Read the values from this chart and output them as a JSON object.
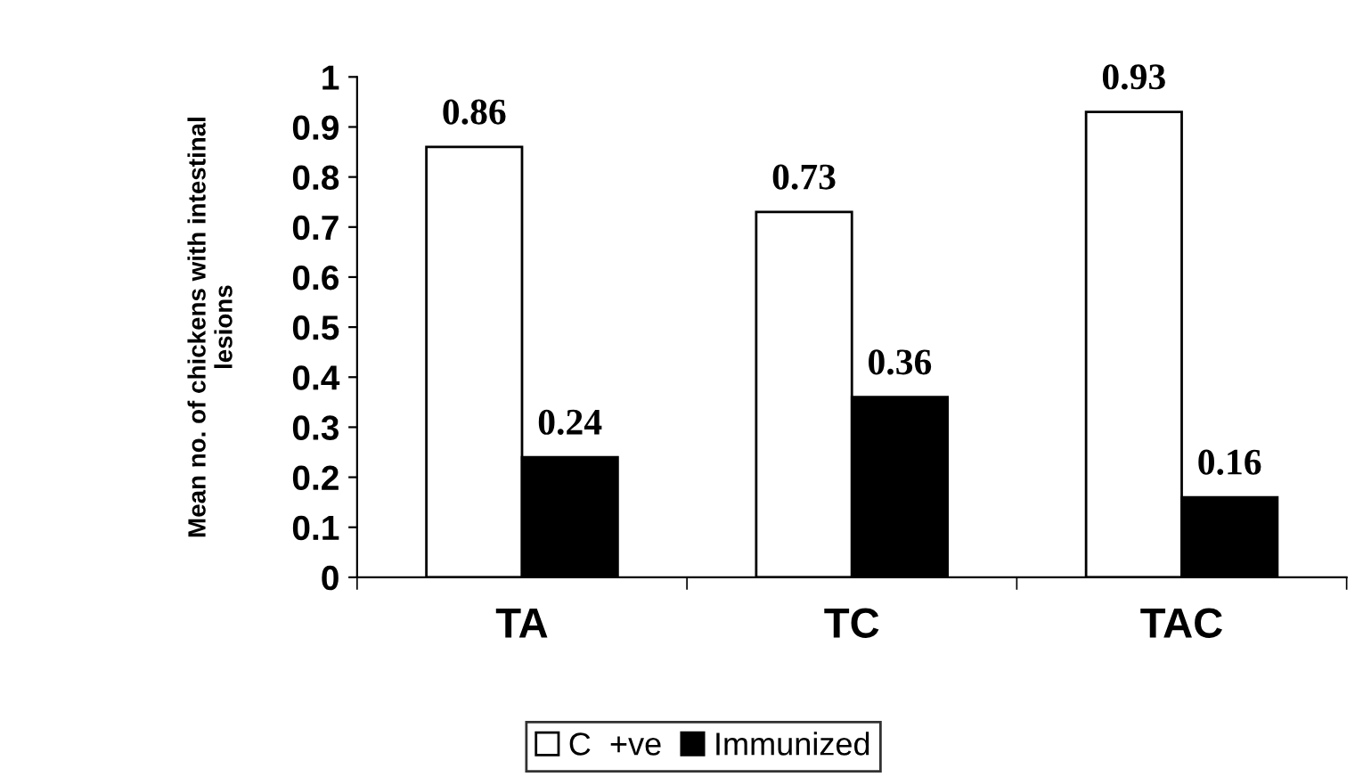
{
  "chart_data": {
    "type": "bar",
    "ylabel": "Mean no. of chickens with intestinal\nlesions",
    "categories": [
      "TA",
      "TC",
      "TAC"
    ],
    "series": [
      {
        "name": "C  +ve",
        "color": "#ffffff",
        "values": [
          0.86,
          0.73,
          0.93
        ]
      },
      {
        "name": "Immunized",
        "color": "#000000",
        "values": [
          0.24,
          0.36,
          0.16
        ]
      }
    ],
    "ylim": [
      0,
      1
    ],
    "yticks": [
      0,
      0.1,
      0.2,
      0.3,
      0.4,
      0.5,
      0.6,
      0.7,
      0.8,
      0.9,
      1
    ],
    "grid": false,
    "legend": "bottom",
    "data_labels": true
  }
}
